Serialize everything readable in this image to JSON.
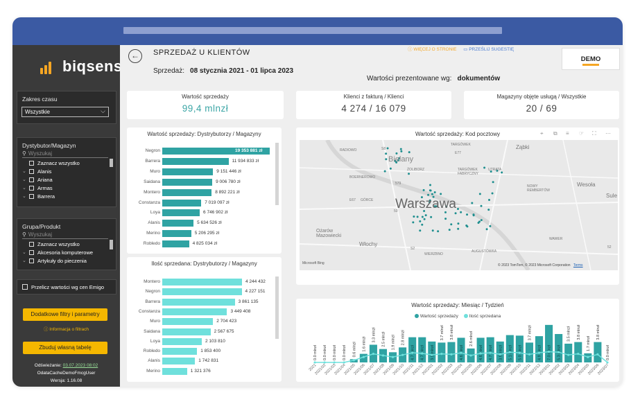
{
  "brand": {
    "name": "biqsens",
    "accent": "#f5a623"
  },
  "sidebar": {
    "time_range": {
      "title": "Zakres czasu",
      "value": "Wszystkie"
    },
    "distributor": {
      "title": "Dystybutor/Magazyn",
      "search_placeholder": "Wyszukaj",
      "items": [
        "Zaznacz wszystko",
        "Alanis",
        "Ariana",
        "Armas",
        "Barrera"
      ]
    },
    "product": {
      "title": "Grupa/Produkt",
      "search_placeholder": "Wyszukaj",
      "items": [
        "Zaznacz wszystko",
        "Akcesoria komputerowe",
        "Artykuły do pieczenia"
      ]
    },
    "recalc_label": "Przelicz wartości wg cen Emigo",
    "filters_button": "Dodatkowe filtry i parametry",
    "filters_info": "Informacja o filtrach",
    "build_table_button": "Zbuduj własną tabelę",
    "refresh_label": "Odświeżanie:",
    "refresh_value": "03.07.2023 08:02",
    "cache_name": "OdataCacheDemoFmcgUser",
    "version": "Wersja: 1.16.08"
  },
  "header": {
    "title": "SPRZEDAŻ U KLIENTÓW",
    "range_label": "Sprzedaż:",
    "range_value": "08 stycznia 2021 - 01 lipca 2023",
    "link_more": "WIĘCEJ O STRONIE",
    "link_suggest": "PRZEŚLIJ SUGESTIĘ",
    "demo_badge": "DEMO",
    "presented_label": "Wartości prezentowane wg:",
    "presented_value": "dokumentów"
  },
  "kpis": [
    {
      "title": "Wartość sprzedaży",
      "value": "99,4 mlnzł",
      "color": "#3ca6a6"
    },
    {
      "title": "Klienci z fakturą / Klienci",
      "value": "4 274 / 16 079",
      "color": "#444444"
    },
    {
      "title": "Magazyny objęte usługą / Wszystkie",
      "value": "20 / 69",
      "color": "#444444"
    }
  ],
  "chart_data": [
    {
      "type": "bar",
      "title": "Wartość sprzedaży: Dystrybutorzy / Magazyny",
      "categories": [
        "Negron",
        "Barrera",
        "Muro",
        "Saidana",
        "Montero",
        "Constanza",
        "Loya",
        "Alanis",
        "Merino",
        "Robledo"
      ],
      "values": [
        19353881,
        11934833,
        9151446,
        9006780,
        8892221,
        7019097,
        6746902,
        5634526,
        5206295,
        4825034
      ],
      "labels": [
        "19 353 881 zł",
        "11 934 833 zł",
        "9 151 446 zł",
        "9 006 780 zł",
        "8 892 221 zł",
        "7 019 097 zł",
        "6 746 902 zł",
        "5 634 526 zł",
        "5 206 295 zł",
        "4 825 034 zł"
      ],
      "color": "#2fa3a3"
    },
    {
      "type": "bar",
      "title": "Ilość sprzedana: Dystrybutorzy / Magazyny",
      "categories": [
        "Montero",
        "Negron",
        "Barrera",
        "Constanza",
        "Muro",
        "Saidana",
        "Loya",
        "Robledo",
        "Alanis",
        "Merino"
      ],
      "values": [
        4244432,
        4227151,
        3861135,
        3449408,
        2704423,
        2567675,
        2103810,
        1853400,
        1742831,
        1321376
      ],
      "labels": [
        "4 244 432",
        "4 227 151",
        "3 861 135",
        "3 449 408",
        "2 704 423",
        "2 567 675",
        "2 103 810",
        "1 853 400",
        "1 742 831",
        "1 321 376"
      ],
      "color": "#6fe0dc"
    },
    {
      "type": "bar",
      "title": "Wartość sprzedaży: Miesiąc / Tydzień",
      "legend": [
        "Wartość sprzedaży",
        "Ilość sprzedana"
      ],
      "categories": [
        "2021",
        "2021/02",
        "2021/03",
        "2021/04",
        "2021/05",
        "2021/06",
        "2021/07",
        "2021/08",
        "2021/09",
        "2021/10",
        "2021/11",
        "2021/12",
        "2022/01",
        "2022/02",
        "2022/03",
        "2022/04",
        "2022/05",
        "2022/06",
        "2022/07",
        "2022/08",
        "2022/09",
        "2022/10",
        "2022/11",
        "2022/12",
        "2023/01",
        "2023/02",
        "2023/03",
        "2023/04",
        "2023/05",
        "2023/06",
        "2023/07"
      ],
      "values": [
        0.0,
        0.0,
        0.0,
        0.0,
        0.6,
        1.6,
        3.3,
        2.5,
        1.9,
        2.8,
        4.7,
        4.7,
        3.9,
        3.7,
        3.8,
        4.6,
        2.6,
        4.6,
        4.7,
        3.9,
        5.1,
        5.0,
        3.7,
        4.9,
        7.0,
        5.3,
        3.5,
        3.8,
        1.7,
        3.8,
        0.0
      ],
      "labels": [
        "0.0 mlnzł",
        "0.0 mlnzł",
        "0.0 mlnzł",
        "0.0 mlnzł",
        "0.6 mlnzł",
        "1.6 mlnzł",
        "3.3 mlnzł",
        "2.5 mlnzł",
        "1.9 mlnzł",
        "2.8 mlnzł",
        "4.7 mlnzł",
        "4.7 mlnzł",
        "3.9 mlnzł",
        "3.7 mlnzł",
        "3.8 mlnzł",
        "4.6 mlnzł",
        "2.6 mlnzł",
        "4.6 mlnzł",
        "4.7 mlnzł",
        "3.9 mlnzł",
        "5.1 mlnzł",
        "5.0 mlnzł",
        "3.7 mlnzł",
        "4.9 mlnzł",
        "7.0 mlnzł",
        "5.3 mlnzł",
        "3.5 mlnzł",
        "3.8 mlnzł",
        "1.7 mlnzł",
        "3.8 mlnzł",
        "0.0 mlnzł"
      ],
      "line_values": [
        0.0,
        0.0,
        0.0,
        0.0,
        0.4,
        1.0,
        1.6,
        1.3,
        1.0,
        1.4,
        1.8,
        1.7,
        1.4,
        1.6,
        1.5,
        1.8,
        1.3,
        1.7,
        1.8,
        1.5,
        1.9,
        1.8,
        1.5,
        1.8,
        2.0,
        1.9,
        1.4,
        1.6,
        1.0,
        1.5,
        0.0
      ],
      "ylim": [
        0,
        7.5
      ],
      "bar_color": "#2fa3a3",
      "line_color": "#6fe0dc"
    }
  ],
  "map": {
    "title": "Wartość sprzedaży: Kod pocztowy",
    "city": "Warszawa",
    "districts": [
      "RADIOWO",
      "Bielany",
      "ŻOLIBORZ",
      "BOERNEROWO",
      "GÓRCE",
      "Ożarów Mazowiecki",
      "Włochy",
      "TARGÓWEK",
      "Ząbki",
      "TARGÓWEK FABRYCZNY",
      "UTRATA",
      "NOWY REMBERTÓW",
      "Wesoła",
      "Sule",
      "WAWER",
      "AUGUSTÓWKA",
      "WIERZBNO"
    ],
    "road_labels": [
      "S8",
      "E77",
      "E67",
      "579",
      "50",
      "S2",
      "52"
    ],
    "attribution": "© 2023 TomTom, © 2023 Microsoft Corporation",
    "terms": "Terms",
    "bing": "Microsoft Bing"
  }
}
